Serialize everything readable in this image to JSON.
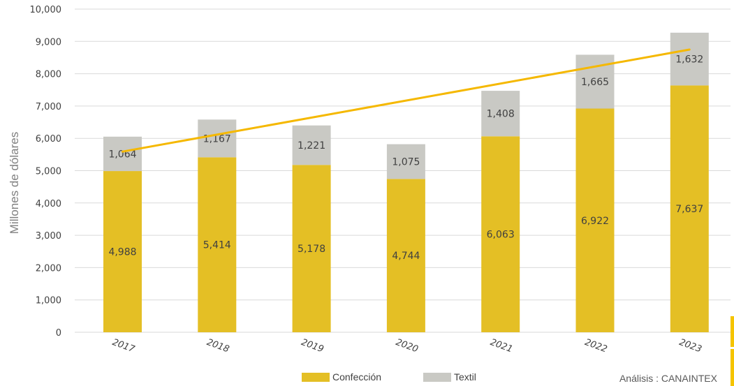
{
  "chart_data": {
    "type": "bar",
    "stacked": true,
    "categories": [
      "2017",
      "2018",
      "2019",
      "2020",
      "2021",
      "2022",
      "2023"
    ],
    "series": [
      {
        "name": "Confección",
        "values": [
          4988,
          5414,
          5178,
          4744,
          6063,
          6922,
          7637
        ],
        "color": "#e4bf25"
      },
      {
        "name": "Textil",
        "values": [
          1064,
          1167,
          1221,
          1075,
          1408,
          1665,
          1632
        ],
        "color": "#c9c9c4"
      }
    ],
    "value_labels": {
      "Confección": [
        "4,988",
        "5,414",
        "5,178",
        "4,744",
        "6,063",
        "6,922",
        "7,637"
      ],
      "Textil": [
        "1,064",
        "1,167",
        "1,221",
        "1,075",
        "1,408",
        "1,665",
        "1,632"
      ]
    },
    "trendline": {
      "type": "linear",
      "color": "#f5b800"
    },
    "ylabel": "Millones de dólares",
    "ylim": [
      0,
      10000
    ],
    "yticks": [
      0,
      1000,
      2000,
      3000,
      4000,
      5000,
      6000,
      7000,
      8000,
      9000,
      10000
    ],
    "ytick_labels": [
      "0",
      "1,000",
      "2,000",
      "3,000",
      "4,000",
      "5,000",
      "6,000",
      "7,000",
      "8,000",
      "9,000",
      "10,000"
    ],
    "grid": true,
    "legend_position": "bottom"
  },
  "source_note": "Análisis : CANAINTEX",
  "accent_colors": {
    "edge_bar": "#f5c400"
  }
}
